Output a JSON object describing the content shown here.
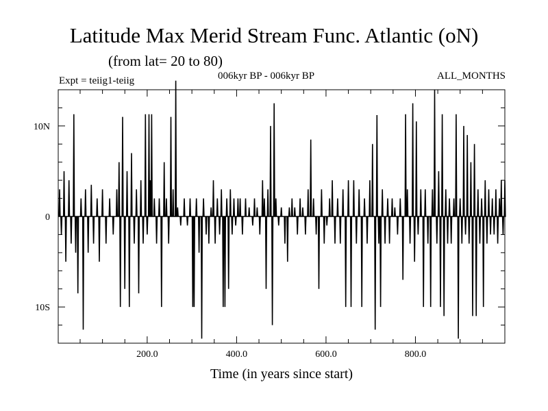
{
  "chart_data": {
    "type": "line",
    "title": "Latitude Max Merid Stream Func. Atlantic (oN)",
    "subtitle": "(from lat= 20 to 80)",
    "expt_label": "Expt = teiig1-teiig",
    "period_label": "006kyr BP - 006kyr BP",
    "months_label": "ALL_MONTHS",
    "xlabel": "Time (in years since start)",
    "ylabel": "",
    "xlim": [
      1,
      1000
    ],
    "ylim": [
      -14,
      14
    ],
    "x_ticks": [
      {
        "value": 200,
        "label": "200.0"
      },
      {
        "value": 400,
        "label": "400.0"
      },
      {
        "value": 600,
        "label": "600.0"
      },
      {
        "value": 800,
        "label": "800.0"
      }
    ],
    "y_ticks": [
      {
        "value": 10,
        "label": "10N"
      },
      {
        "value": 0,
        "label": "0"
      },
      {
        "value": -10,
        "label": "10S"
      }
    ],
    "grid": false,
    "series": [
      {
        "color": "#000000",
        "spikes": [
          [
            4,
            3
          ],
          [
            8,
            -2
          ],
          [
            14,
            5
          ],
          [
            18,
            -5
          ],
          [
            25,
            4
          ],
          [
            30,
            -3
          ],
          [
            36,
            11.3
          ],
          [
            40,
            -4
          ],
          [
            45,
            -8.5
          ],
          [
            52,
            2
          ],
          [
            57,
            -12.5
          ],
          [
            62,
            3
          ],
          [
            68,
            -4
          ],
          [
            75,
            3.5
          ],
          [
            80,
            -3
          ],
          [
            88,
            2
          ],
          [
            93,
            -5
          ],
          [
            100,
            3
          ],
          [
            108,
            -3
          ],
          [
            116,
            2
          ],
          [
            124,
            -2
          ],
          [
            132,
            3
          ],
          [
            137,
            6
          ],
          [
            140,
            -10
          ],
          [
            145,
            11
          ],
          [
            150,
            -8
          ],
          [
            155,
            5
          ],
          [
            160,
            -10
          ],
          [
            165,
            7
          ],
          [
            171,
            -3
          ],
          [
            176,
            3
          ],
          [
            181,
            -8.5
          ],
          [
            186,
            4
          ],
          [
            191,
            -3
          ],
          [
            196,
            11.3
          ],
          [
            200,
            -2
          ],
          [
            204,
            11.3
          ],
          [
            207,
            4
          ],
          [
            210,
            11.3
          ],
          [
            216,
            2
          ],
          [
            221,
            -3
          ],
          [
            227,
            2
          ],
          [
            232,
            -10
          ],
          [
            238,
            6
          ],
          [
            243,
            2
          ],
          [
            248,
            -3
          ],
          [
            253,
            11
          ],
          [
            258,
            3
          ],
          [
            264,
            15
          ],
          [
            268,
            1
          ],
          [
            275,
            -1
          ],
          [
            283,
            2
          ],
          [
            290,
            -1
          ],
          [
            296,
            2
          ],
          [
            302,
            -10
          ],
          [
            305,
            -10
          ],
          [
            310,
            2
          ],
          [
            316,
            -4
          ],
          [
            322,
            -13.5
          ],
          [
            326,
            2
          ],
          [
            332,
            -2
          ],
          [
            338,
            -3
          ],
          [
            343,
            1
          ],
          [
            348,
            4
          ],
          [
            352,
            -3
          ],
          [
            357,
            2
          ],
          [
            362,
            -2
          ],
          [
            366,
            3
          ],
          [
            370,
            -10
          ],
          [
            374,
            -10
          ],
          [
            378,
            2
          ],
          [
            382,
            -8
          ],
          [
            386,
            3
          ],
          [
            390,
            -2
          ],
          [
            394,
            2
          ],
          [
            398,
            -1
          ],
          [
            403,
            2
          ],
          [
            408,
            2
          ],
          [
            413,
            -2
          ],
          [
            420,
            2
          ],
          [
            428,
            1
          ],
          [
            436,
            -1
          ],
          [
            440,
            2
          ],
          [
            446,
            1
          ],
          [
            452,
            -2
          ],
          [
            458,
            4
          ],
          [
            462,
            2
          ],
          [
            466,
            -8
          ],
          [
            470,
            3
          ],
          [
            476,
            10
          ],
          [
            480,
            -12
          ],
          [
            484,
            12.5
          ],
          [
            488,
            2
          ],
          [
            494,
            -1
          ],
          [
            500,
            1
          ],
          [
            508,
            -3
          ],
          [
            514,
            -5
          ],
          [
            518,
            1
          ],
          [
            524,
            2
          ],
          [
            530,
            1
          ],
          [
            536,
            -2
          ],
          [
            542,
            2
          ],
          [
            548,
            1
          ],
          [
            554,
            -2
          ],
          [
            560,
            3
          ],
          [
            566,
            8.5
          ],
          [
            572,
            2
          ],
          [
            578,
            -2
          ],
          [
            584,
            -8
          ],
          [
            590,
            3
          ],
          [
            596,
            -3
          ],
          [
            602,
            -1
          ],
          [
            608,
            2
          ],
          [
            614,
            4
          ],
          [
            620,
            -3
          ],
          [
            626,
            2
          ],
          [
            632,
            -3
          ],
          [
            638,
            3
          ],
          [
            644,
            -10
          ],
          [
            650,
            4
          ],
          [
            656,
            -10
          ],
          [
            662,
            4
          ],
          [
            668,
            -3
          ],
          [
            674,
            3
          ],
          [
            680,
            -10
          ],
          [
            686,
            2
          ],
          [
            692,
            -3
          ],
          [
            698,
            4
          ],
          [
            704,
            8
          ],
          [
            710,
            -12.5
          ],
          [
            714,
            11.2
          ],
          [
            718,
            -3
          ],
          [
            722,
            -10
          ],
          [
            726,
            3
          ],
          [
            732,
            -3
          ],
          [
            738,
            2
          ],
          [
            742,
            -3
          ],
          [
            748,
            2
          ],
          [
            754,
            1
          ],
          [
            760,
            -2
          ],
          [
            766,
            2
          ],
          [
            772,
            -7
          ],
          [
            778,
            11.3
          ],
          [
            782,
            3
          ],
          [
            788,
            -3
          ],
          [
            794,
            12.5
          ],
          [
            798,
            -5
          ],
          [
            802,
            10.5
          ],
          [
            806,
            -2
          ],
          [
            812,
            3
          ],
          [
            818,
            -10
          ],
          [
            822,
            3
          ],
          [
            828,
            -3
          ],
          [
            834,
            -10
          ],
          [
            838,
            3
          ],
          [
            843,
            14
          ],
          [
            848,
            -3
          ],
          [
            852,
            5
          ],
          [
            856,
            -10
          ],
          [
            860,
            11.3
          ],
          [
            864,
            -11
          ],
          [
            868,
            3
          ],
          [
            872,
            -3
          ],
          [
            876,
            2
          ],
          [
            880,
            -3
          ],
          [
            886,
            2
          ],
          [
            891,
            11.3
          ],
          [
            896,
            -13.5
          ],
          [
            900,
            2
          ],
          [
            904,
            -3
          ],
          [
            908,
            10
          ],
          [
            912,
            -2
          ],
          [
            916,
            9
          ],
          [
            920,
            -3
          ],
          [
            924,
            6
          ],
          [
            928,
            -11
          ],
          [
            932,
            8
          ],
          [
            936,
            -11
          ],
          [
            940,
            3
          ],
          [
            944,
            -3
          ],
          [
            948,
            2
          ],
          [
            952,
            -10
          ],
          [
            956,
            4
          ],
          [
            960,
            -3
          ],
          [
            964,
            3
          ],
          [
            968,
            -2
          ],
          [
            972,
            2
          ],
          [
            976,
            -2
          ],
          [
            980,
            3
          ],
          [
            984,
            -3
          ],
          [
            988,
            2
          ],
          [
            992,
            4
          ],
          [
            996,
            -2
          ],
          [
            1000,
            4
          ]
        ]
      }
    ]
  }
}
